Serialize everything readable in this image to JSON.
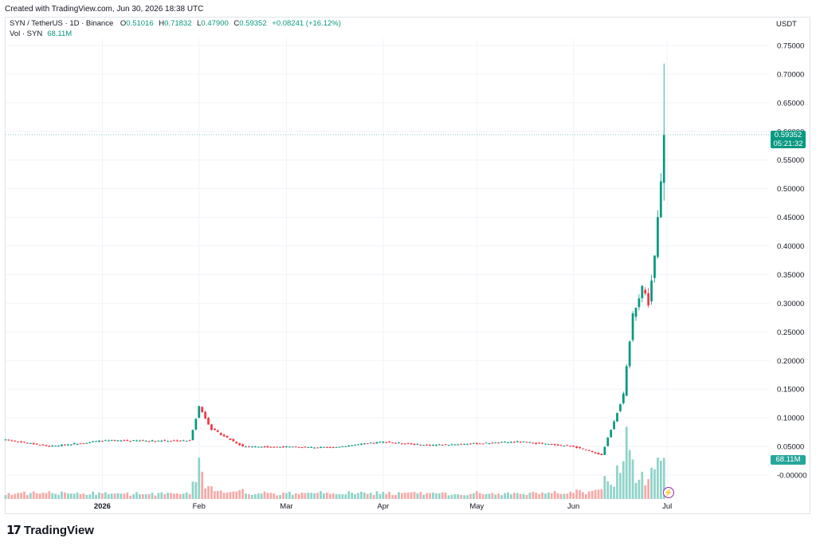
{
  "caption": "Created with TradingView.com, Jun 30, 2026 18:38 UTC",
  "legend": {
    "symbol": "SYN / TetherUS · 1D · Binance",
    "open_key": "O",
    "open": "0.51016",
    "high_key": "H",
    "high": "0.71832",
    "low_key": "L",
    "low": "0.47900",
    "close_key": "C",
    "close": "0.59352",
    "change": "+0.08241 (+16.12%)",
    "vol_label": "Vol · SYN",
    "vol_value": "68.11M"
  },
  "currency": "USDT",
  "last_price": {
    "price": "0.59352",
    "countdown": "05:21:32"
  },
  "volume_tag": "68.11M",
  "brand": "TradingView",
  "colors": {
    "up": "#089981",
    "down": "#f23645",
    "vol_up": "#8fd3c9",
    "vol_down": "#f7a9a7",
    "grid": "#f0f3fa",
    "accent": "#9c27b0"
  },
  "icons": {
    "logo": "tradingview-logo-icon",
    "bolt": "lightning-icon"
  },
  "chart_data": {
    "type": "candlestick",
    "symbol": "SYN / TetherUS",
    "interval": "1D",
    "exchange": "Binance",
    "x_tick_labels": [
      "2026",
      "Feb",
      "Mar",
      "Apr",
      "May",
      "Jun",
      "Jul"
    ],
    "y_tick_labels": [
      "0.75000",
      "0.70000",
      "0.65000",
      "0.60000",
      "0.55000",
      "0.50000",
      "0.45000",
      "0.40000",
      "0.35000",
      "0.30000",
      "0.25000",
      "0.20000",
      "0.15000",
      "0.10000",
      "0.05000",
      "-0.00000"
    ],
    "ylim": [
      -0.01,
      0.765
    ],
    "grid": true,
    "last_candle": {
      "open": 0.51016,
      "high": 0.71832,
      "low": 0.479,
      "close": 0.59352,
      "volume": "68.11M"
    },
    "approx_close_path": [
      {
        "date": "2025-12-01",
        "close": 0.062
      },
      {
        "date": "2025-12-15",
        "close": 0.05
      },
      {
        "date": "2026-01-01",
        "close": 0.06
      },
      {
        "date": "2026-01-15",
        "close": 0.06
      },
      {
        "date": "2026-01-29",
        "close": 0.06
      },
      {
        "date": "2026-02-01",
        "close": 0.12
      },
      {
        "date": "2026-02-05",
        "close": 0.08
      },
      {
        "date": "2026-02-15",
        "close": 0.05
      },
      {
        "date": "2026-03-15",
        "close": 0.048
      },
      {
        "date": "2026-04-01",
        "close": 0.058
      },
      {
        "date": "2026-04-15",
        "close": 0.052
      },
      {
        "date": "2026-05-15",
        "close": 0.058
      },
      {
        "date": "2026-06-01",
        "close": 0.05
      },
      {
        "date": "2026-06-10",
        "close": 0.035
      },
      {
        "date": "2026-06-17",
        "close": 0.14
      },
      {
        "date": "2026-06-20",
        "close": 0.28
      },
      {
        "date": "2026-06-23",
        "close": 0.33
      },
      {
        "date": "2026-06-25",
        "close": 0.3
      },
      {
        "date": "2026-06-27",
        "close": 0.38
      },
      {
        "date": "2026-06-29",
        "close": 0.51
      },
      {
        "date": "2026-06-30",
        "close": 0.59352
      }
    ]
  }
}
